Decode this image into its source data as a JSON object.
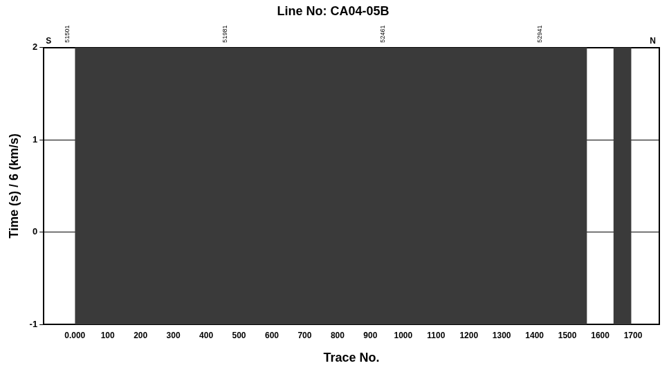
{
  "chart_data": {
    "type": "wiggle",
    "title": "Line No: CA04-05B",
    "x_label": "Trace No.",
    "y_label": "Time (s) / 6 (km/s)",
    "xlim": [
      -95,
      1780
    ],
    "xticks": [
      {
        "value": 0,
        "label": "0.000"
      },
      100,
      200,
      300,
      400,
      500,
      600,
      700,
      800,
      900,
      1000,
      1100,
      1200,
      1300,
      1400,
      1500,
      1600,
      1700
    ],
    "x2ticks": [
      {
        "value": 0,
        "label": "51501"
      },
      {
        "value": 480,
        "label": "51981"
      },
      {
        "value": 960,
        "label": "52461"
      },
      {
        "value": 1440,
        "label": "52941"
      }
    ],
    "ylim": [
      -1,
      2
    ],
    "yticks": [
      -1,
      0,
      1,
      2
    ],
    "grid": true,
    "trace_ranges": [
      [
        0,
        1560
      ],
      [
        1640,
        1695
      ]
    ],
    "color": "#3a3a3a",
    "annotations": [
      {
        "text": "S",
        "x": -80,
        "y": 2
      },
      {
        "text": "N",
        "x": 1760,
        "y": 2
      }
    ]
  }
}
